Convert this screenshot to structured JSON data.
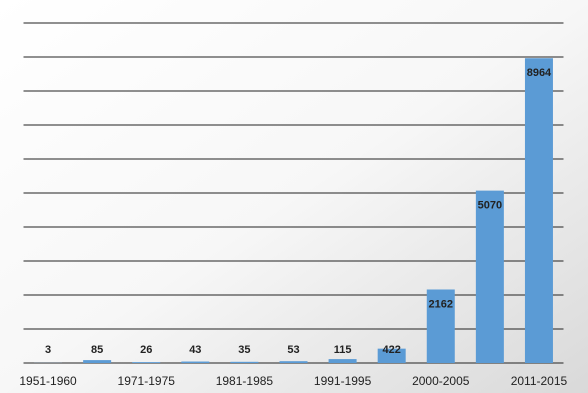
{
  "chart_data": {
    "type": "bar",
    "categories": [
      "1951-1960",
      null,
      "1971-1975",
      null,
      "1981-1985",
      null,
      "1991-1995",
      null,
      "2000-2005",
      null,
      "2011-2015"
    ],
    "values": [
      3,
      85,
      26,
      43,
      35,
      53,
      115,
      422,
      2162,
      5070,
      8964
    ],
    "color": "#5b9bd5",
    "ylim": [
      0,
      10000
    ],
    "yticks": [
      0,
      1000,
      2000,
      3000,
      4000,
      5000,
      6000,
      7000,
      8000,
      9000,
      10000
    ],
    "grid": true
  }
}
